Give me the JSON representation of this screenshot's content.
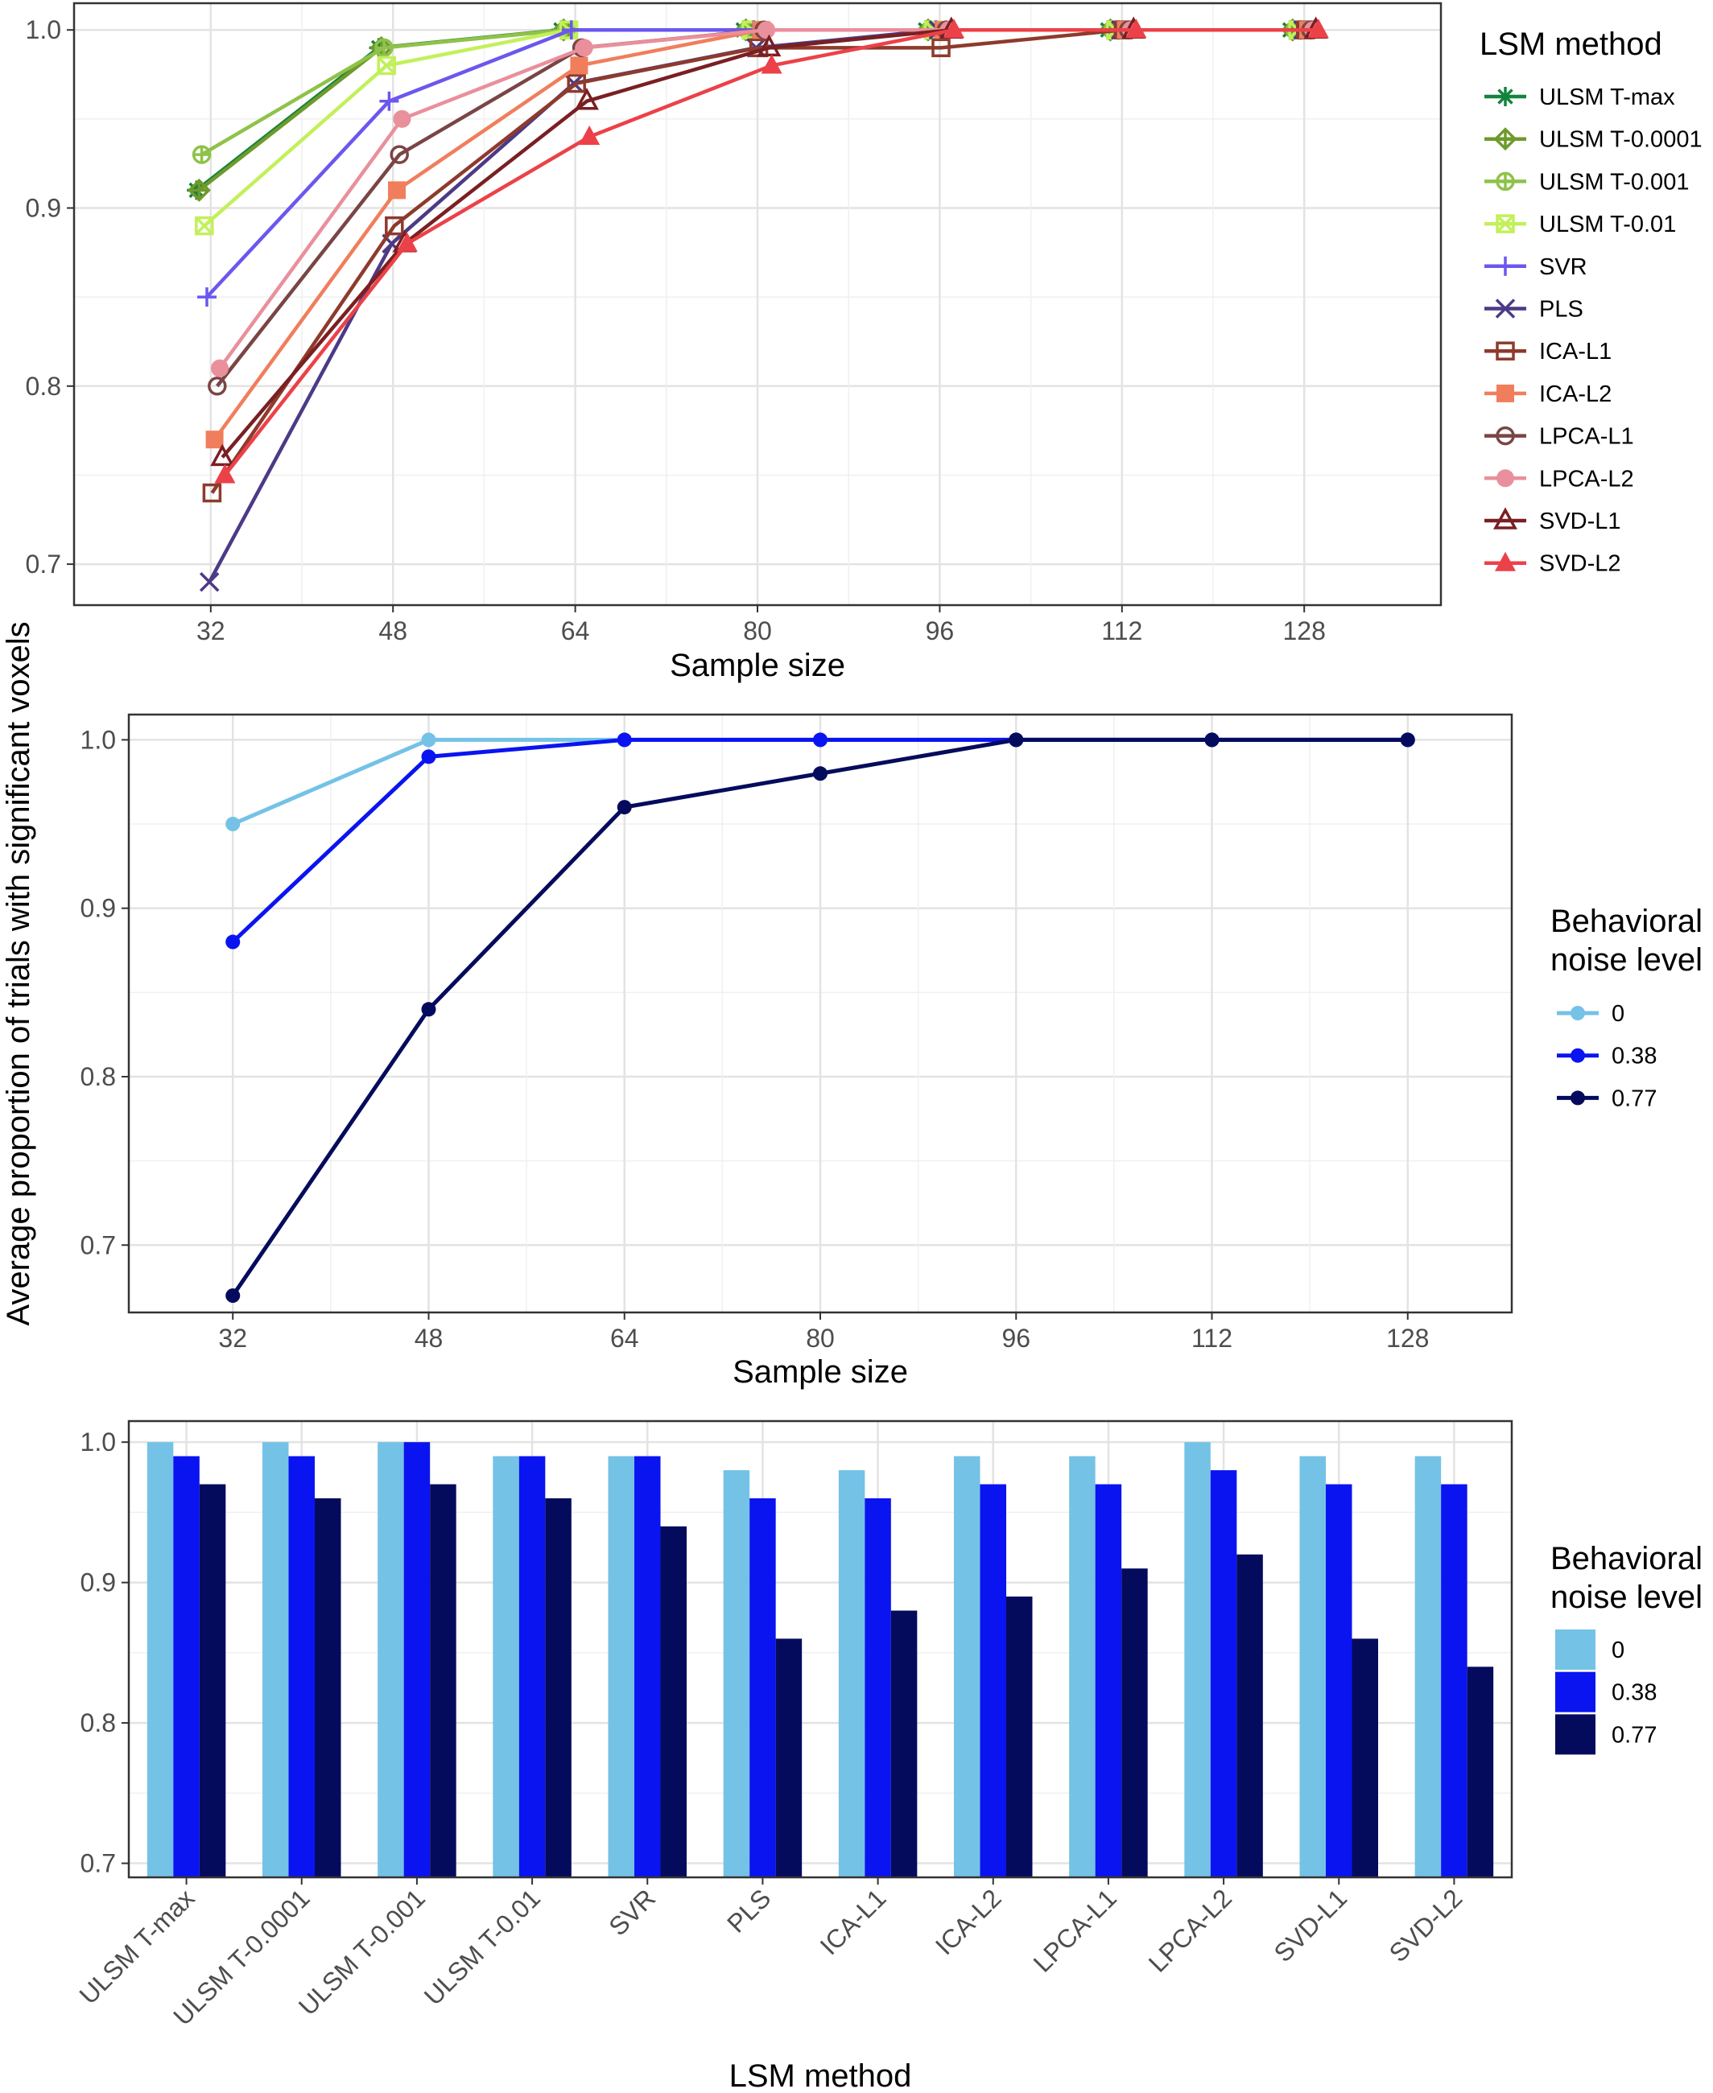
{
  "shared": {
    "ylabel": "Average proportion of trials with significant voxels"
  },
  "chart_data": [
    {
      "type": "line",
      "xlabel": "Sample size",
      "ylabel": "Average proportion of trials with significant voxels",
      "x": [
        32,
        48,
        64,
        80,
        96,
        112,
        128
      ],
      "xlim": [
        20,
        140
      ],
      "ylim": [
        0.677,
        1.015
      ],
      "yticks": [
        0.7,
        0.8,
        0.9,
        1.0
      ],
      "ytick_labels": [
        "0.7",
        "0.8",
        "0.9",
        "1.0"
      ],
      "grid": true,
      "legend_title": "LSM method",
      "legend_position": "right",
      "series": [
        {
          "name": "ULSM T-max",
          "color": "#13843c",
          "marker": "asterisk",
          "values": [
            0.91,
            0.99,
            1.0,
            1.0,
            1.0,
            1.0,
            1.0
          ]
        },
        {
          "name": "ULSM T-0.0001",
          "color": "#6f9a2c",
          "marker": "diamond-plus",
          "values": [
            0.91,
            0.99,
            1.0,
            1.0,
            1.0,
            1.0,
            1.0
          ]
        },
        {
          "name": "ULSM T-0.001",
          "color": "#8fc24a",
          "marker": "circle-plus",
          "values": [
            0.93,
            0.99,
            1.0,
            1.0,
            1.0,
            1.0,
            1.0
          ]
        },
        {
          "name": "ULSM T-0.01",
          "color": "#c2f05a",
          "marker": "square-cross",
          "values": [
            0.89,
            0.98,
            1.0,
            1.0,
            1.0,
            1.0,
            1.0
          ]
        },
        {
          "name": "SVR",
          "color": "#6b57ee",
          "marker": "plus",
          "values": [
            0.85,
            0.96,
            1.0,
            1.0,
            1.0,
            1.0,
            1.0
          ]
        },
        {
          "name": "PLS",
          "color": "#4c3a86",
          "marker": "x",
          "values": [
            0.69,
            0.88,
            0.97,
            0.99,
            1.0,
            1.0,
            1.0
          ]
        },
        {
          "name": "ICA-L1",
          "color": "#8e3a2c",
          "marker": "square-open",
          "values": [
            0.74,
            0.89,
            0.97,
            0.99,
            0.99,
            1.0,
            1.0
          ]
        },
        {
          "name": "ICA-L2",
          "color": "#f07e5c",
          "marker": "square-filled",
          "values": [
            0.77,
            0.91,
            0.98,
            1.0,
            1.0,
            1.0,
            1.0
          ]
        },
        {
          "name": "LPCA-L1",
          "color": "#7a4545",
          "marker": "circle-open",
          "values": [
            0.8,
            0.93,
            0.99,
            1.0,
            1.0,
            1.0,
            1.0
          ]
        },
        {
          "name": "LPCA-L2",
          "color": "#ea8f9c",
          "marker": "circle-filled",
          "values": [
            0.81,
            0.95,
            0.99,
            1.0,
            1.0,
            1.0,
            1.0
          ]
        },
        {
          "name": "SVD-L1",
          "color": "#7a1f22",
          "marker": "triangle-open",
          "values": [
            0.76,
            0.88,
            0.96,
            0.99,
            1.0,
            1.0,
            1.0
          ]
        },
        {
          "name": "SVD-L2",
          "color": "#ec4148",
          "marker": "triangle-filled",
          "values": [
            0.75,
            0.88,
            0.94,
            0.98,
            1.0,
            1.0,
            1.0
          ]
        }
      ]
    },
    {
      "type": "line",
      "xlabel": "Sample size",
      "ylabel": "Average proportion of trials with significant voxels",
      "x": [
        32,
        48,
        64,
        80,
        96,
        112,
        128
      ],
      "xlim": [
        23.5,
        136.5
      ],
      "ylim": [
        0.66,
        1.015
      ],
      "yticks": [
        0.7,
        0.8,
        0.9,
        1.0
      ],
      "ytick_labels": [
        "0.7",
        "0.8",
        "0.9",
        "1.0"
      ],
      "grid": true,
      "legend_title": [
        "Behavioral",
        "noise level"
      ],
      "legend_position": "right",
      "series": [
        {
          "name": "0",
          "color": "#74c2e6",
          "values": [
            0.95,
            1.0,
            1.0,
            1.0,
            1.0,
            1.0,
            1.0
          ]
        },
        {
          "name": "0.38",
          "color": "#0a14f0",
          "values": [
            0.88,
            0.99,
            1.0,
            1.0,
            1.0,
            1.0,
            1.0
          ]
        },
        {
          "name": "0.77",
          "color": "#050b5c",
          "values": [
            0.67,
            0.84,
            0.96,
            0.98,
            1.0,
            1.0,
            1.0
          ]
        }
      ]
    },
    {
      "type": "bar",
      "xlabel": "LSM method",
      "ylabel": "Average proportion of trials with significant voxels",
      "categories": [
        "ULSM T-max",
        "ULSM T-0.0001",
        "ULSM T-0.001",
        "ULSM T-0.01",
        "SVR",
        "PLS",
        "ICA-L1",
        "ICA-L2",
        "LPCA-L1",
        "LPCA-L2",
        "SVD-L1",
        "SVD-L2"
      ],
      "ylim": [
        0.69,
        1.015
      ],
      "yticks": [
        0.7,
        0.8,
        0.9,
        1.0
      ],
      "ytick_labels": [
        "0.7",
        "0.8",
        "0.9",
        "1.0"
      ],
      "grid": true,
      "legend_title": [
        "Behavioral",
        "noise level"
      ],
      "legend_position": "right",
      "series": [
        {
          "name": "0",
          "color": "#74c2e6",
          "values": [
            1.0,
            1.0,
            1.0,
            0.99,
            0.99,
            0.98,
            0.98,
            0.99,
            0.99,
            1.0,
            0.99,
            0.99
          ]
        },
        {
          "name": "0.38",
          "color": "#0a14f0",
          "values": [
            0.99,
            0.99,
            1.0,
            0.99,
            0.99,
            0.96,
            0.96,
            0.97,
            0.97,
            0.98,
            0.97,
            0.97
          ]
        },
        {
          "name": "0.77",
          "color": "#050b5c",
          "values": [
            0.97,
            0.96,
            0.97,
            0.96,
            0.94,
            0.86,
            0.88,
            0.89,
            0.91,
            0.92,
            0.86,
            0.84
          ]
        }
      ]
    }
  ]
}
